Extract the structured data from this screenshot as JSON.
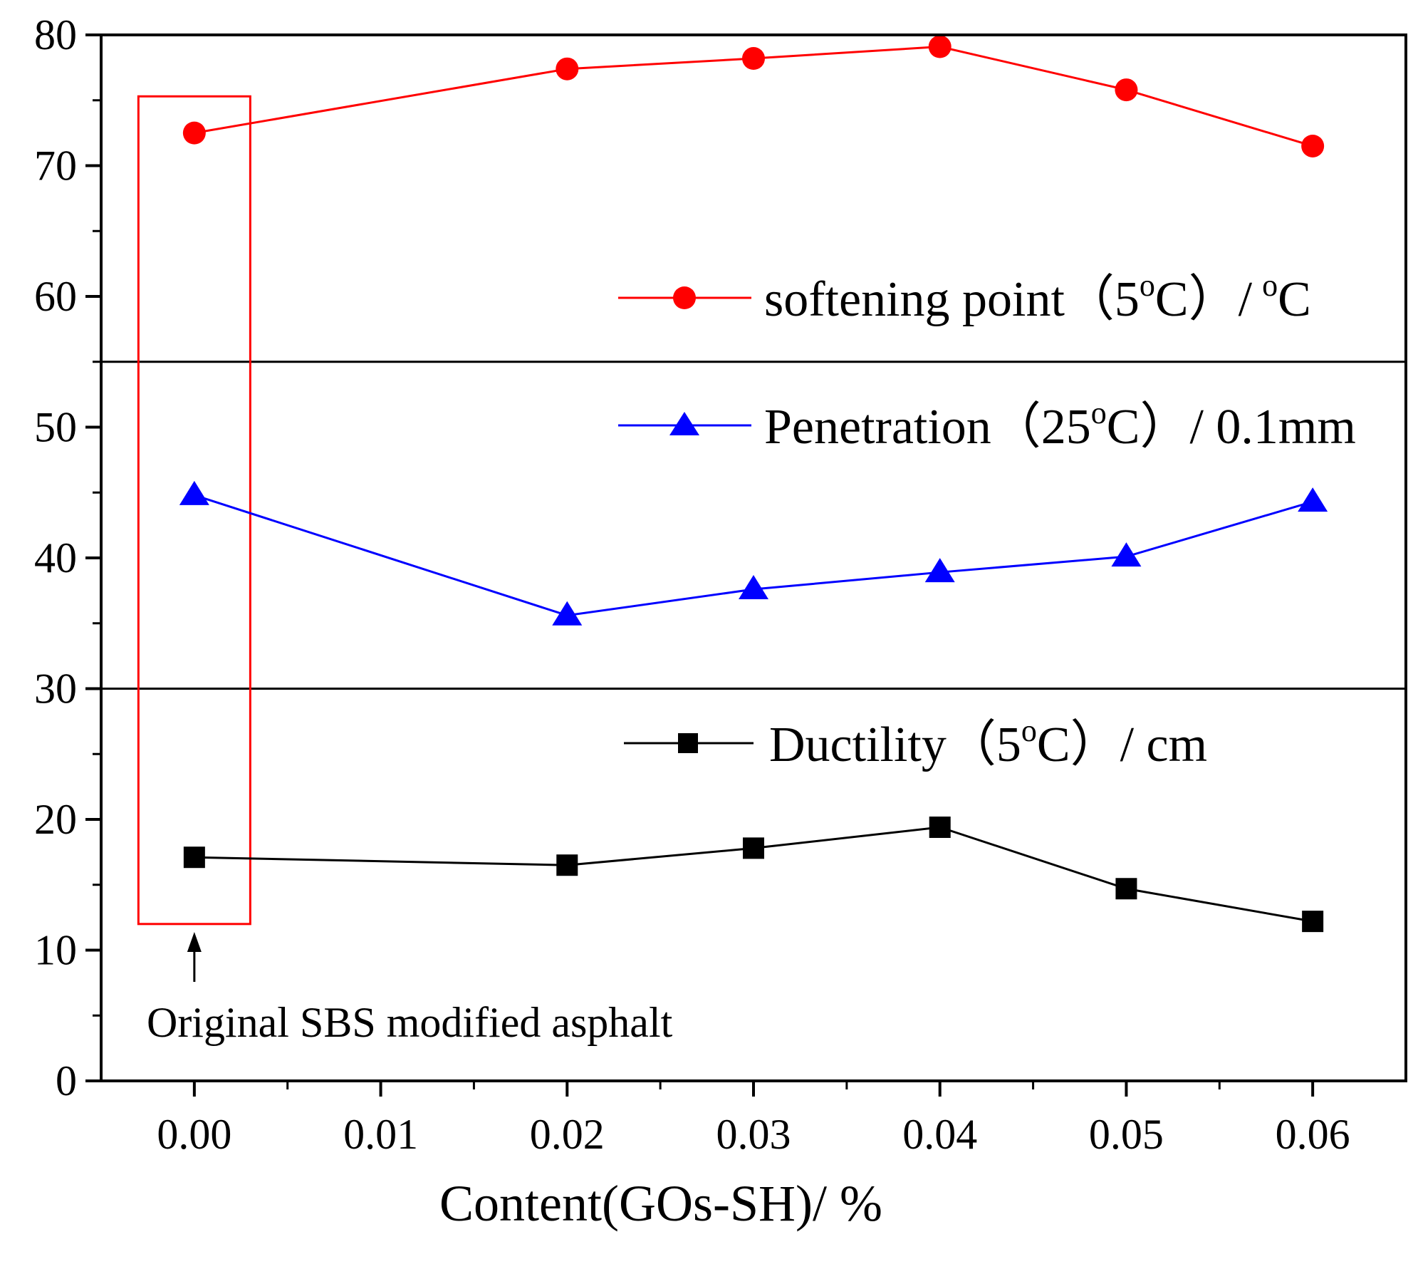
{
  "chart_data": {
    "type": "line",
    "title": "",
    "xlabel": "Content(GOs-SH)/ %",
    "ylabel": "",
    "xlim": [
      -0.005,
      0.065
    ],
    "ylim": [
      0,
      80
    ],
    "x_ticks": [
      0.0,
      0.01,
      0.02,
      0.03,
      0.04,
      0.05,
      0.06
    ],
    "x_tick_labels": [
      "0.00",
      "0.01",
      "0.02",
      "0.03",
      "0.04",
      "0.05",
      "0.06"
    ],
    "y_ticks": [
      0,
      10,
      20,
      30,
      40,
      50,
      60,
      70,
      80
    ],
    "y_tick_labels": [
      "0",
      "10",
      "20",
      "30",
      "40",
      "50",
      "60",
      "70",
      "80"
    ],
    "panel_dividers": [
      30,
      55
    ],
    "x": [
      0.0,
      0.02,
      0.03,
      0.04,
      0.05,
      0.06
    ],
    "series": [
      {
        "name": "softening point（5°C）/ °C",
        "legend_label": "softening point（5",
        "legend_sup1": "o",
        "legend_mid": "C）/",
        "legend_sup2": "o",
        "legend_end": "C",
        "marker": "circle",
        "color": "#ff0000",
        "values": [
          72.5,
          77.4,
          78.2,
          79.1,
          75.8,
          71.5
        ]
      },
      {
        "name": "Penetration（25°C）/ 0.1mm",
        "legend_label": "Penetration（25",
        "legend_sup1": "o",
        "legend_end": "C）/ 0.1mm",
        "marker": "triangle",
        "color": "#0000ff",
        "values": [
          44.8,
          35.6,
          37.6,
          38.9,
          40.1,
          44.3
        ]
      },
      {
        "name": "Ductility（5°C）/ cm",
        "legend_label": "Ductility（5",
        "legend_sup1": "o",
        "legend_end": "C）/ cm",
        "marker": "square",
        "color": "#000000",
        "values": [
          17.1,
          16.5,
          17.8,
          19.4,
          14.7,
          12.2
        ]
      }
    ],
    "annotations": [
      {
        "text": "Original SBS modified asphalt",
        "target_x": 0.0,
        "highlight_range_x": [
          -0.003,
          0.003
        ],
        "highlight_range_y": [
          12,
          75.3
        ],
        "highlight_color": "#ff0000"
      }
    ]
  }
}
